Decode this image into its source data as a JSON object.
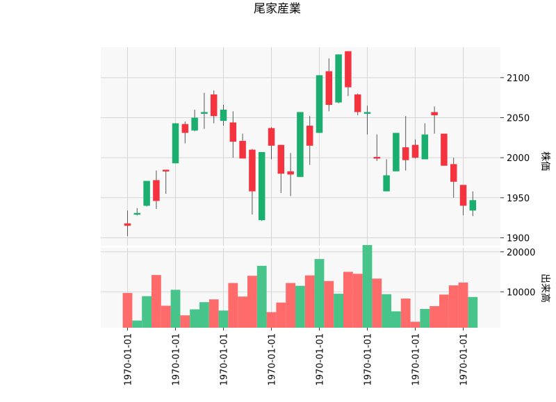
{
  "chart_data": {
    "type": "candlestick",
    "title": "尾家産業",
    "price_panel": {
      "ylabel": "株価",
      "ylim": [
        1890,
        2138
      ],
      "yticks": [
        1900,
        1950,
        2000,
        2050,
        2100
      ]
    },
    "volume_panel": {
      "ylabel": "出来高",
      "ylim": [
        1000,
        21000
      ],
      "yticks": [
        10000,
        20000
      ],
      "yticklabels": [
        "10000",
        "20000"
      ]
    },
    "x_tick_labels": [
      "1970-01-01",
      "1970-01-01",
      "1970-01-01",
      "1970-01-01",
      "1970-01-01",
      "1970-01-01",
      "1970-01-01",
      "1970-01-01"
    ],
    "x_tick_indices": [
      0,
      5,
      10,
      15,
      20,
      25,
      30,
      35
    ],
    "colors": {
      "up": "#1aae6f",
      "down": "#f5333f",
      "vol_up": "#46c48a",
      "vol_down": "#ff6b6b",
      "grid": "#d6d6d6",
      "bg": "#f8f8f8"
    },
    "candles": [
      {
        "open": 1918,
        "high": 1934,
        "low": 1902,
        "close": 1915,
        "volume": 9700
      },
      {
        "open": 1929,
        "high": 1937,
        "low": 1928,
        "close": 1931,
        "volume": 2800
      },
      {
        "open": 1940,
        "high": 1971,
        "low": 1939,
        "close": 1971,
        "volume": 8900
      },
      {
        "open": 1972,
        "high": 1984,
        "low": 1936,
        "close": 1946,
        "volume": 14200
      },
      {
        "open": 1985,
        "high": 1985,
        "low": 1955,
        "close": 1983,
        "volume": 6500
      },
      {
        "open": 1993,
        "high": 2043,
        "low": 1993,
        "close": 2043,
        "volume": 10500
      },
      {
        "open": 2042,
        "high": 2045,
        "low": 2018,
        "close": 2031,
        "volume": 4100
      },
      {
        "open": 2034,
        "high": 2060,
        "low": 2033,
        "close": 2050,
        "volume": 5600
      },
      {
        "open": 2055,
        "high": 2081,
        "low": 2036,
        "close": 2057,
        "volume": 7400
      },
      {
        "open": 2079,
        "high": 2084,
        "low": 2043,
        "close": 2052,
        "volume": 8100
      },
      {
        "open": 2046,
        "high": 2066,
        "low": 2040,
        "close": 2060,
        "volume": 5300
      },
      {
        "open": 2044,
        "high": 2058,
        "low": 2000,
        "close": 2020,
        "volume": 12200
      },
      {
        "open": 2021,
        "high": 2030,
        "low": 1999,
        "close": 1999,
        "volume": 8800
      },
      {
        "open": 2010,
        "high": 2011,
        "low": 1929,
        "close": 1958,
        "volume": 14000
      },
      {
        "open": 1922,
        "high": 2007,
        "low": 1921,
        "close": 2007,
        "volume": 16500
      },
      {
        "open": 2037,
        "high": 2038,
        "low": 1998,
        "close": 2015,
        "volume": 4900
      },
      {
        "open": 2016,
        "high": 2016,
        "low": 1956,
        "close": 1980,
        "volume": 7300
      },
      {
        "open": 1983,
        "high": 2006,
        "low": 1952,
        "close": 1979,
        "volume": 12200
      },
      {
        "open": 1976,
        "high": 2057,
        "low": 1976,
        "close": 2057,
        "volume": 11500
      },
      {
        "open": 2040,
        "high": 2052,
        "low": 1991,
        "close": 2015,
        "volume": 14100
      },
      {
        "open": 2031,
        "high": 2103,
        "low": 2031,
        "close": 2103,
        "volume": 18200
      },
      {
        "open": 2108,
        "high": 2124,
        "low": 2058,
        "close": 2066,
        "volume": 12700
      },
      {
        "open": 2069,
        "high": 2129,
        "low": 2068,
        "close": 2129,
        "volume": 9500
      },
      {
        "open": 2133,
        "high": 2133,
        "low": 2077,
        "close": 2088,
        "volume": 15000
      },
      {
        "open": 2079,
        "high": 2080,
        "low": 2053,
        "close": 2057,
        "volume": 14500
      },
      {
        "open": 2055,
        "high": 2065,
        "low": 2029,
        "close": 2057,
        "volume": 21700
      },
      {
        "open": 2001,
        "high": 2029,
        "low": 1996,
        "close": 1999,
        "volume": 13300
      },
      {
        "open": 1958,
        "high": 1998,
        "low": 1958,
        "close": 1978,
        "volume": 9400
      },
      {
        "open": 1983,
        "high": 2031,
        "low": 1983,
        "close": 2031,
        "volume": 5100
      },
      {
        "open": 2013,
        "high": 2052,
        "low": 1984,
        "close": 1997,
        "volume": 8300
      },
      {
        "open": 2016,
        "high": 2023,
        "low": 1999,
        "close": 2000,
        "volume": 2500
      },
      {
        "open": 1998,
        "high": 2043,
        "low": 1998,
        "close": 2029,
        "volume": 5700
      },
      {
        "open": 2057,
        "high": 2064,
        "low": 2030,
        "close": 2053,
        "volume": 6400
      },
      {
        "open": 2030,
        "high": 2030,
        "low": 1990,
        "close": 1990,
        "volume": 9300
      },
      {
        "open": 1992,
        "high": 2000,
        "low": 1950,
        "close": 1970,
        "volume": 11600
      },
      {
        "open": 1966,
        "high": 1966,
        "low": 1928,
        "close": 1940,
        "volume": 12300
      },
      {
        "open": 1934,
        "high": 1958,
        "low": 1927,
        "close": 1947,
        "volume": 8700
      }
    ]
  }
}
